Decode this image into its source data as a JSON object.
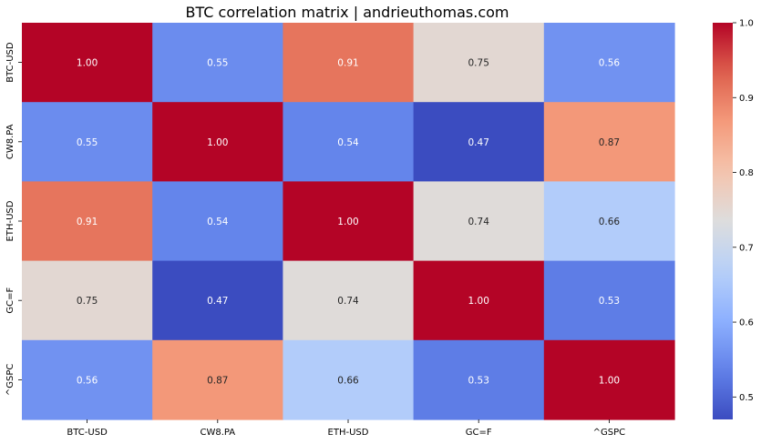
{
  "chart_data": {
    "type": "heatmap",
    "title": "BTC correlation matrix | andrieuthomas.com",
    "xlabel": "",
    "ylabel": "",
    "x_categories": [
      "BTC-USD",
      "CW8.PA",
      "ETH-USD",
      "GC=F",
      "^GSPC"
    ],
    "y_categories": [
      "BTC-USD",
      "CW8.PA",
      "ETH-USD",
      "GC=F",
      "^GSPC"
    ],
    "values": [
      [
        1.0,
        0.55,
        0.91,
        0.75,
        0.56
      ],
      [
        0.55,
        1.0,
        0.54,
        0.47,
        0.87
      ],
      [
        0.91,
        0.54,
        1.0,
        0.74,
        0.66
      ],
      [
        0.75,
        0.47,
        0.74,
        1.0,
        0.53
      ],
      [
        0.56,
        0.87,
        0.66,
        0.53,
        1.0
      ]
    ],
    "annotation_format": "0.00",
    "colormap": "coolwarm",
    "colorbar": {
      "range": [
        0.47,
        1.0
      ],
      "ticks": [
        0.5,
        0.6,
        0.7,
        0.8,
        0.9,
        1.0
      ],
      "tick_labels": [
        "0.5",
        "0.6",
        "0.7",
        "0.8",
        "0.9",
        "1.0"
      ]
    },
    "grid": false,
    "legend": "colorbar-right"
  }
}
